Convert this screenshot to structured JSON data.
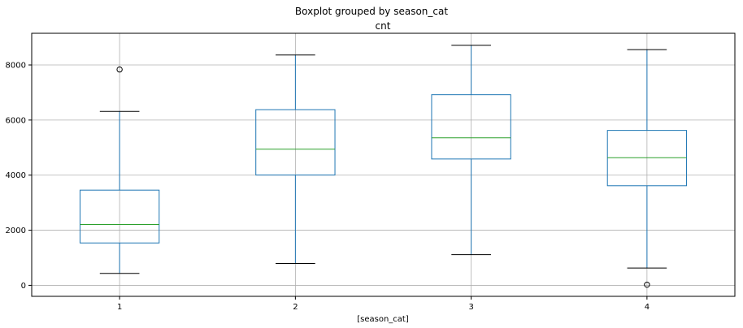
{
  "chart_data": {
    "type": "boxplot",
    "suptitle": "Boxplot grouped by season_cat",
    "title": "cnt",
    "xlabel": "[season_cat]",
    "ylabel": "",
    "ylim": [
      -400,
      9150
    ],
    "yticks": [
      0,
      2000,
      4000,
      6000,
      8000
    ],
    "ytick_labels": [
      "0",
      "2000",
      "4000",
      "6000",
      "8000"
    ],
    "grid": true,
    "categories": [
      "1",
      "2",
      "3",
      "4"
    ],
    "boxes": [
      {
        "category": "1",
        "whisker_low": 431,
        "q1": 1538,
        "median": 2209,
        "q3": 3456,
        "whisker_high": 6312,
        "outliers": [
          7836
        ]
      },
      {
        "category": "2",
        "whisker_low": 795,
        "q1": 4004,
        "median": 4942,
        "q3": 6378,
        "whisker_high": 8362,
        "outliers": []
      },
      {
        "category": "3",
        "whisker_low": 1115,
        "q1": 4586,
        "median": 5354,
        "q3": 6920,
        "whisker_high": 8714,
        "outliers": []
      },
      {
        "category": "4",
        "whisker_low": 627,
        "q1": 3615,
        "median": 4634,
        "q3": 5624,
        "whisker_high": 8555,
        "outliers": [
          22
        ]
      }
    ],
    "colors": {
      "box": "#1f77b4",
      "median": "#2ca02c",
      "cap": "#000000",
      "grid": "#b0b0b0",
      "frame": "#000000"
    }
  }
}
